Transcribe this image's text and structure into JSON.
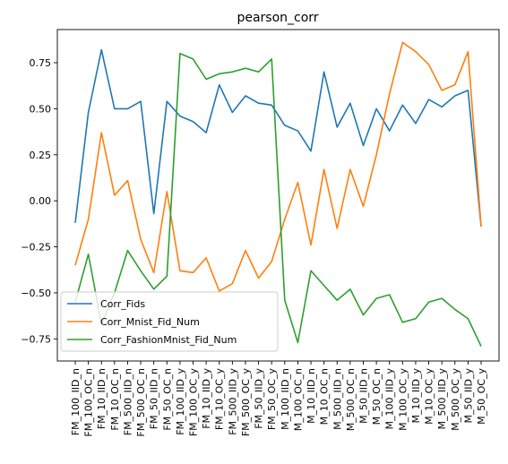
{
  "chart_data": {
    "type": "line",
    "title": "pearson_corr",
    "xlabel": "",
    "ylabel": "",
    "ylim": [
      -0.87,
      0.93
    ],
    "yticks": [
      -0.75,
      -0.5,
      -0.25,
      0.0,
      0.25,
      0.5,
      0.75
    ],
    "ytick_labels": [
      "−0.75",
      "−0.50",
      "−0.25",
      "0.00",
      "0.25",
      "0.50",
      "0.75"
    ],
    "grid": false,
    "legend_position": "lower-left",
    "categories": [
      "FM_100_IID_n",
      "FM_100_OC_n",
      "FM_10_IID_n",
      "FM_10_OC_n",
      "FM_500_IID_n",
      "FM_500_OC_n",
      "FM_50_IID_n",
      "FM_50_OC_n",
      "FM_100_IID_y",
      "FM_100_OC_y",
      "FM_10_IID_y",
      "FM_10_OC_y",
      "FM_500_IID_y",
      "FM_500_OC_y",
      "FM_50_IID_y",
      "FM_50_OC_y",
      "M_100_IID_n",
      "M_100_OC_n",
      "M_10_IID_n",
      "M_10_OC_n",
      "M_500_IID_n",
      "M_500_OC_n",
      "M_50_IID_n",
      "M_50_OC_n",
      "M_100_IID_y",
      "M_100_OC_y",
      "M_10_IID_y",
      "M_10_OC_y",
      "M_500_IID_y",
      "M_500_OC_y",
      "M_50_IID_y",
      "M_50_OC_y"
    ],
    "series": [
      {
        "name": "Corr_Fids",
        "color": "#1f77b4",
        "values": [
          -0.12,
          0.48,
          0.82,
          0.5,
          0.5,
          0.54,
          -0.07,
          0.54,
          0.46,
          0.43,
          0.37,
          0.63,
          0.48,
          0.57,
          0.53,
          0.52,
          0.41,
          0.38,
          0.27,
          0.7,
          0.4,
          0.53,
          0.3,
          0.5,
          0.38,
          0.52,
          0.42,
          0.55,
          0.51,
          0.57,
          0.6,
          -0.14
        ]
      },
      {
        "name": "Corr_Mnist_Fid_Num",
        "color": "#ff7f0e",
        "values": [
          -0.35,
          -0.1,
          0.37,
          0.03,
          0.11,
          -0.21,
          -0.39,
          0.05,
          -0.38,
          -0.39,
          -0.31,
          -0.49,
          -0.45,
          -0.27,
          -0.42,
          -0.33,
          -0.1,
          0.1,
          -0.24,
          0.17,
          -0.15,
          0.17,
          -0.03,
          0.25,
          0.58,
          0.86,
          0.81,
          0.74,
          0.6,
          0.63,
          0.81,
          -0.14
        ]
      },
      {
        "name": "Corr_FashionMnist_Fid_Num",
        "color": "#2ca02c",
        "values": [
          -0.55,
          -0.29,
          -0.67,
          -0.5,
          -0.27,
          -0.38,
          -0.48,
          -0.41,
          0.8,
          0.77,
          0.66,
          0.69,
          0.7,
          0.72,
          0.7,
          0.77,
          -0.54,
          -0.77,
          -0.38,
          -0.46,
          -0.54,
          -0.48,
          -0.62,
          -0.53,
          -0.51,
          -0.66,
          -0.64,
          -0.55,
          -0.53,
          -0.59,
          -0.64,
          -0.79
        ]
      }
    ]
  }
}
